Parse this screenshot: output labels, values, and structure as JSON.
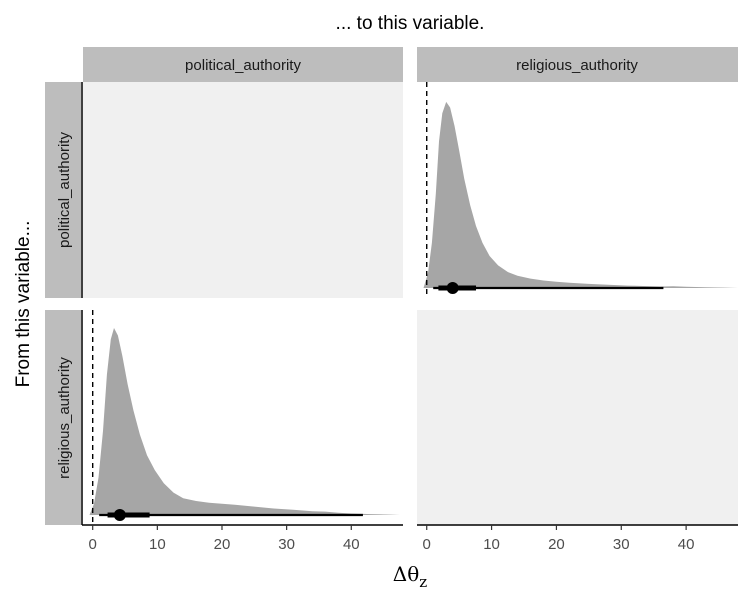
{
  "chart_data": {
    "type": "area",
    "title": "... to this variable.",
    "ylabel": "From this variable...",
    "xlabel": "Δθ",
    "xlabel_subscript": "z",
    "column_strips": [
      "political_authority",
      "religious_authority"
    ],
    "row_strips": [
      "political_authority",
      "religious_authority"
    ],
    "x_ticks": [
      0,
      10,
      20,
      30,
      40
    ],
    "xlim": [
      -1.5,
      48
    ],
    "reference_line_x": 0,
    "panel_background_empty": "#f0f0f0",
    "strip_color": "#bdbdbd",
    "density_color": "#a6a6a6",
    "interval_color": "#000000",
    "panels": [
      {
        "row": "political_authority",
        "col": "religious_authority",
        "empty": false,
        "point_estimate": 4.0,
        "interval_66": [
          1.8,
          7.6
        ],
        "interval_95": [
          1.0,
          36.5
        ],
        "density": [
          [
            -0.5,
            0.0
          ],
          [
            0.2,
            0.08
          ],
          [
            0.8,
            0.24
          ],
          [
            1.4,
            0.5
          ],
          [
            1.9,
            0.78
          ],
          [
            2.4,
            0.93
          ],
          [
            3.0,
            0.99
          ],
          [
            3.6,
            0.96
          ],
          [
            4.3,
            0.86
          ],
          [
            5.0,
            0.73
          ],
          [
            5.8,
            0.58
          ],
          [
            6.7,
            0.44
          ],
          [
            7.6,
            0.33
          ],
          [
            8.6,
            0.24
          ],
          [
            9.7,
            0.17
          ],
          [
            11,
            0.12
          ],
          [
            12.5,
            0.085
          ],
          [
            14,
            0.065
          ],
          [
            16,
            0.05
          ],
          [
            18,
            0.04
          ],
          [
            20,
            0.033
          ],
          [
            22,
            0.028
          ],
          [
            25,
            0.022
          ],
          [
            28,
            0.017
          ],
          [
            31,
            0.013
          ],
          [
            34,
            0.01
          ],
          [
            36,
            0.008
          ],
          [
            38,
            0.009
          ],
          [
            40,
            0.007
          ],
          [
            43,
            0.004
          ],
          [
            46,
            0.002
          ],
          [
            48,
            0.0
          ]
        ]
      },
      {
        "row": "religious_authority",
        "col": "political_authority",
        "empty": false,
        "point_estimate": 4.2,
        "interval_66": [
          2.3,
          8.8
        ],
        "interval_95": [
          1.0,
          41.8
        ],
        "density": [
          [
            -0.5,
            0.0
          ],
          [
            0.2,
            0.06
          ],
          [
            0.9,
            0.2
          ],
          [
            1.6,
            0.45
          ],
          [
            2.2,
            0.75
          ],
          [
            2.8,
            0.94
          ],
          [
            3.3,
            1.0
          ],
          [
            3.9,
            0.96
          ],
          [
            4.6,
            0.85
          ],
          [
            5.4,
            0.7
          ],
          [
            6.3,
            0.56
          ],
          [
            7.3,
            0.43
          ],
          [
            8.4,
            0.32
          ],
          [
            9.6,
            0.24
          ],
          [
            11,
            0.17
          ],
          [
            12.5,
            0.12
          ],
          [
            14,
            0.09
          ],
          [
            16,
            0.075
          ],
          [
            18,
            0.065
          ],
          [
            20,
            0.06
          ],
          [
            22,
            0.055
          ],
          [
            25,
            0.045
          ],
          [
            28,
            0.035
          ],
          [
            31,
            0.028
          ],
          [
            34,
            0.02
          ],
          [
            36,
            0.018
          ],
          [
            38,
            0.012
          ],
          [
            40,
            0.008
          ],
          [
            43,
            0.005
          ],
          [
            46,
            0.002
          ],
          [
            47.5,
            0.0
          ]
        ]
      },
      {
        "row": "political_authority",
        "col": "political_authority",
        "empty": true
      },
      {
        "row": "religious_authority",
        "col": "religious_authority",
        "empty": true
      }
    ]
  }
}
